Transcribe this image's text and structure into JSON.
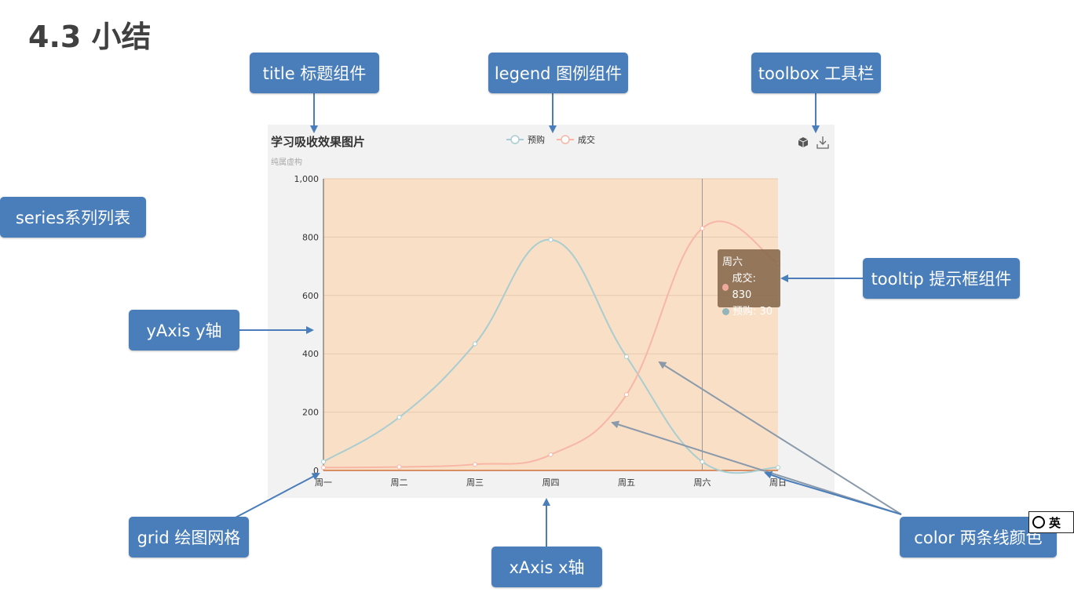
{
  "slide_title": "4.3 小结",
  "callouts": {
    "title": "title 标题组件",
    "legend": "legend 图例组件",
    "toolbox": "toolbox 工具栏",
    "series": "series系列列表",
    "yaxis": "yAxis y轴",
    "tooltip": "tooltip 提示框组件",
    "grid": "grid 绘图网格",
    "xaxis": "xAxis x轴",
    "color": "color 两条线颜色"
  },
  "tooltip": {
    "title": "周六",
    "rows": [
      {
        "label": "成交: 830",
        "color": "#f2a99d"
      },
      {
        "label": "预购: 30",
        "color": "#91b5bb"
      }
    ]
  },
  "ime": {
    "label": "英"
  },
  "colors": {
    "callout_bg": "#4a7ebb",
    "grid_bg": "#f9dfc6",
    "series_yugou": "#a9cdd0",
    "series_chengjiao": "#f7b6a6"
  },
  "chart_data": {
    "type": "line",
    "title": "学习吸收效果图片",
    "subtitle": "纯属虚构",
    "categories": [
      "周一",
      "周二",
      "周三",
      "周四",
      "周五",
      "周六",
      "周日"
    ],
    "series": [
      {
        "name": "预购",
        "values": [
          30,
          182,
          434,
          791,
          390,
          30,
          10
        ],
        "smooth": true
      },
      {
        "name": "成交",
        "values": [
          10,
          12,
          21,
          54,
          260,
          830,
          710
        ],
        "smooth": true
      }
    ],
    "yticks": [
      0,
      200,
      400,
      600,
      800,
      1000
    ],
    "ytick_labels": [
      "0",
      "200",
      "400",
      "600",
      "800",
      "1,000"
    ],
    "ylim": [
      0,
      1000
    ],
    "legend_position": "top-center",
    "toolbox_icons": [
      "magic-type-icon",
      "save-as-image-icon"
    ],
    "highlighted_category": "周六",
    "grid": true
  }
}
